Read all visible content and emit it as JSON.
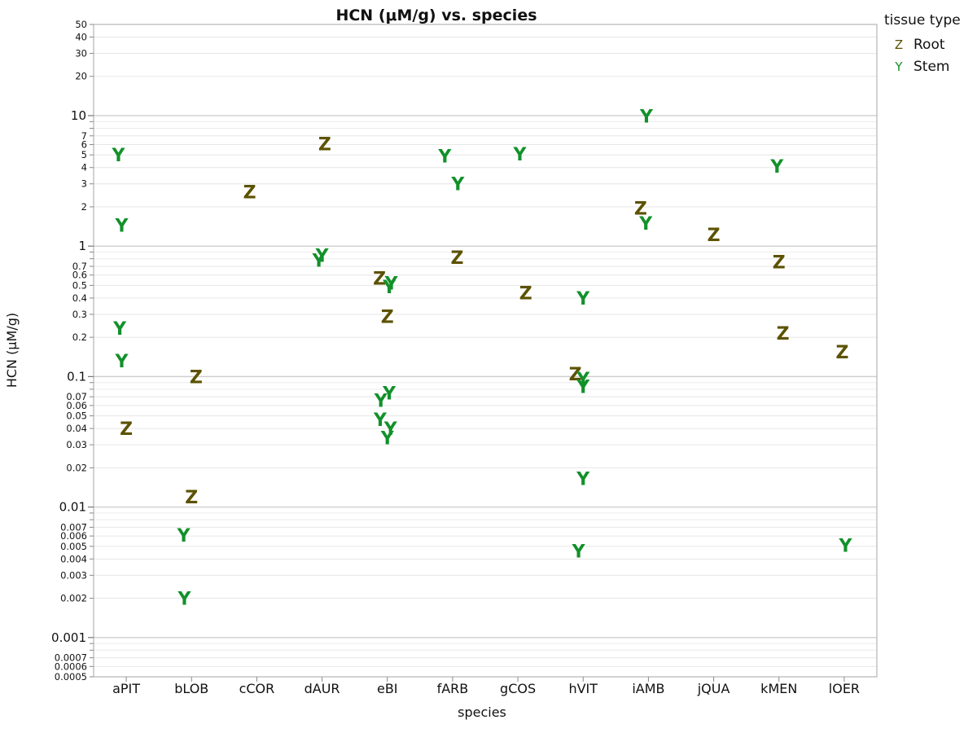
{
  "chart_data": {
    "type": "scatter",
    "title": "HCN (μM/g) vs. species",
    "xlabel": "species",
    "ylabel": "HCN (μM/g)",
    "y_scale": "log",
    "ylim": [
      0.0005,
      50
    ],
    "grid": true,
    "legend_placement": "top-right",
    "legend_title": "tissue type",
    "categories": [
      "aPIT",
      "bLOB",
      "cCOR",
      "dAUR",
      "eBI",
      "fARB",
      "gCOS",
      "hVIT",
      "iAMB",
      "jQUA",
      "kMEN",
      "lOER"
    ],
    "y_major_ticks": [
      {
        "v": 10,
        "label": "10"
      },
      {
        "v": 1,
        "label": "1"
      },
      {
        "v": 0.1,
        "label": "0.1"
      },
      {
        "v": 0.01,
        "label": "0.01"
      },
      {
        "v": 0.001,
        "label": "0.001"
      }
    ],
    "y_minor_ticks": [
      {
        "v": 50,
        "label": "50"
      },
      {
        "v": 40,
        "label": "40"
      },
      {
        "v": 30,
        "label": "30"
      },
      {
        "v": 20,
        "label": "20"
      },
      {
        "v": 7,
        "label": "7"
      },
      {
        "v": 6,
        "label": "6"
      },
      {
        "v": 5,
        "label": "5"
      },
      {
        "v": 4,
        "label": "4"
      },
      {
        "v": 3,
        "label": "3"
      },
      {
        "v": 2,
        "label": "2"
      },
      {
        "v": 0.7,
        "label": "0.7"
      },
      {
        "v": 0.6,
        "label": "0.6"
      },
      {
        "v": 0.5,
        "label": "0.5"
      },
      {
        "v": 0.4,
        "label": "0.4"
      },
      {
        "v": 0.3,
        "label": "0.3"
      },
      {
        "v": 0.2,
        "label": "0.2"
      },
      {
        "v": 0.07,
        "label": "0.07"
      },
      {
        "v": 0.06,
        "label": "0.06"
      },
      {
        "v": 0.05,
        "label": "0.05"
      },
      {
        "v": 0.04,
        "label": "0.04"
      },
      {
        "v": 0.03,
        "label": "0.03"
      },
      {
        "v": 0.02,
        "label": "0.02"
      },
      {
        "v": 0.007,
        "label": "0.007"
      },
      {
        "v": 0.006,
        "label": "0.006"
      },
      {
        "v": 0.005,
        "label": "0.005"
      },
      {
        "v": 0.004,
        "label": "0.004"
      },
      {
        "v": 0.003,
        "label": "0.003"
      },
      {
        "v": 0.002,
        "label": "0.002"
      },
      {
        "v": 0.0007,
        "label": "0.0007"
      },
      {
        "v": 0.0006,
        "label": "0.0006"
      },
      {
        "v": 0.0005,
        "label": "0.0005"
      }
    ],
    "unlabeled_ticks": [
      9,
      8,
      0.9,
      0.8,
      0.09,
      0.08,
      0.009,
      0.008,
      0.0009,
      0.0008
    ],
    "series": [
      {
        "name": "Root",
        "symbol": "Z",
        "color": "#5c5200",
        "points": [
          {
            "x": "aPIT",
            "y": 0.04,
            "jitter": 0.0
          },
          {
            "x": "bLOB",
            "y": 0.1,
            "jitter": 0.07
          },
          {
            "x": "bLOB",
            "y": 0.012,
            "jitter": 0.0
          },
          {
            "x": "cCOR",
            "y": 2.6,
            "jitter": -0.11
          },
          {
            "x": "dAUR",
            "y": 6.1,
            "jitter": 0.04
          },
          {
            "x": "eBI",
            "y": 0.57,
            "jitter": -0.12
          },
          {
            "x": "eBI",
            "y": 0.29,
            "jitter": 0.0
          },
          {
            "x": "fARB",
            "y": 0.82,
            "jitter": 0.07
          },
          {
            "x": "gCOS",
            "y": 0.44,
            "jitter": 0.12
          },
          {
            "x": "hVIT",
            "y": 0.105,
            "jitter": -0.12
          },
          {
            "x": "iAMB",
            "y": 1.95,
            "jitter": -0.12
          },
          {
            "x": "jQUA",
            "y": 1.23,
            "jitter": 0.0
          },
          {
            "x": "kMEN",
            "y": 0.76,
            "jitter": 0.0
          },
          {
            "x": "kMEN",
            "y": 0.215,
            "jitter": 0.06
          },
          {
            "x": "lOER",
            "y": 0.155,
            "jitter": -0.03
          }
        ]
      },
      {
        "name": "Stem",
        "symbol": "Y",
        "color": "#12912a",
        "points": [
          {
            "x": "aPIT",
            "y": 5.0,
            "jitter": -0.12
          },
          {
            "x": "aPIT",
            "y": 1.45,
            "jitter": -0.07
          },
          {
            "x": "aPIT",
            "y": 0.235,
            "jitter": -0.1
          },
          {
            "x": "aPIT",
            "y": 0.132,
            "jitter": -0.07
          },
          {
            "x": "bLOB",
            "y": 0.0061,
            "jitter": -0.12
          },
          {
            "x": "bLOB",
            "y": 0.002,
            "jitter": -0.11
          },
          {
            "x": "dAUR",
            "y": 0.78,
            "jitter": -0.05
          },
          {
            "x": "dAUR",
            "y": 0.85,
            "jitter": 0.0
          },
          {
            "x": "eBI",
            "y": 0.52,
            "jitter": 0.06
          },
          {
            "x": "eBI",
            "y": 0.49,
            "jitter": 0.03
          },
          {
            "x": "eBI",
            "y": 0.075,
            "jitter": 0.03
          },
          {
            "x": "eBI",
            "y": 0.066,
            "jitter": -0.1
          },
          {
            "x": "eBI",
            "y": 0.047,
            "jitter": -0.11
          },
          {
            "x": "eBI",
            "y": 0.04,
            "jitter": 0.05
          },
          {
            "x": "eBI",
            "y": 0.034,
            "jitter": 0.0
          },
          {
            "x": "fARB",
            "y": 4.9,
            "jitter": -0.12
          },
          {
            "x": "fARB",
            "y": 3.0,
            "jitter": 0.08
          },
          {
            "x": "gCOS",
            "y": 5.1,
            "jitter": 0.03
          },
          {
            "x": "hVIT",
            "y": 0.4,
            "jitter": 0.0
          },
          {
            "x": "hVIT",
            "y": 0.096,
            "jitter": 0.0
          },
          {
            "x": "hVIT",
            "y": 0.084,
            "jitter": 0.0
          },
          {
            "x": "hVIT",
            "y": 0.0165,
            "jitter": 0.0
          },
          {
            "x": "hVIT",
            "y": 0.0046,
            "jitter": -0.07
          },
          {
            "x": "iAMB",
            "y": 9.9,
            "jitter": -0.03
          },
          {
            "x": "iAMB",
            "y": 1.5,
            "jitter": -0.04
          },
          {
            "x": "kMEN",
            "y": 4.1,
            "jitter": -0.03
          },
          {
            "x": "lOER",
            "y": 0.0051,
            "jitter": 0.02
          }
        ]
      }
    ]
  }
}
